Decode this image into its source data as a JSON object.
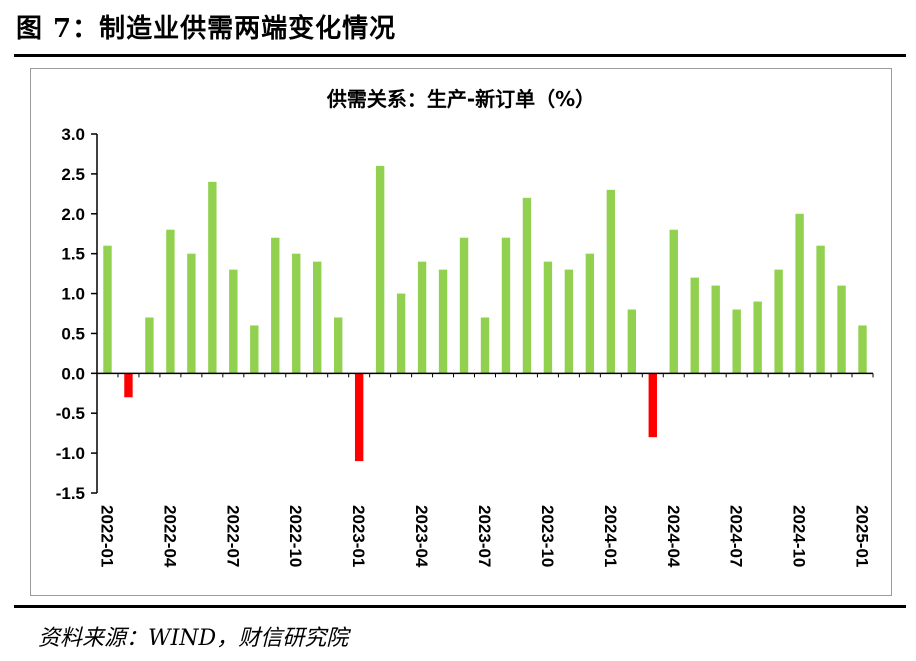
{
  "figure": {
    "title": "图 7：制造业供需两端变化情况",
    "source": "资料来源：WIND，财信研究院"
  },
  "colors": {
    "positive": "#92d050",
    "negative": "#ff0000",
    "axis": "#000000"
  },
  "chart_data": {
    "type": "bar",
    "title": "供需关系：生产-新订单（%）",
    "xlabel": "",
    "ylabel": "",
    "ylim": [
      -1.5,
      3.0
    ],
    "yticks": [
      3.0,
      2.5,
      2.0,
      1.5,
      1.0,
      0.5,
      0.0,
      -0.5,
      -1.0,
      -1.5
    ],
    "ytick_labels": [
      "3.0",
      "2.5",
      "2.0",
      "1.5",
      "1.0",
      "0.5",
      "0.0",
      "-0.5",
      "-1.0",
      "-1.5"
    ],
    "categories": [
      "2022-01",
      "2022-02",
      "2022-03",
      "2022-04",
      "2022-05",
      "2022-06",
      "2022-07",
      "2022-08",
      "2022-09",
      "2022-10",
      "2022-11",
      "2022-12",
      "2023-01",
      "2023-02",
      "2023-03",
      "2023-04",
      "2023-05",
      "2023-06",
      "2023-07",
      "2023-08",
      "2023-09",
      "2023-10",
      "2023-11",
      "2023-12",
      "2024-01",
      "2024-02",
      "2024-03",
      "2024-04",
      "2024-05",
      "2024-06",
      "2024-07",
      "2024-08",
      "2024-09",
      "2024-10",
      "2024-11",
      "2024-12",
      "2025-01"
    ],
    "xtick_labels": [
      "2022-01",
      "2022-04",
      "2022-07",
      "2022-10",
      "2023-01",
      "2023-04",
      "2023-07",
      "2023-10",
      "2024-01",
      "2024-04",
      "2024-07",
      "2024-10",
      "2025-01"
    ],
    "values": [
      1.6,
      -0.3,
      0.7,
      1.8,
      1.5,
      2.4,
      1.3,
      0.6,
      1.7,
      1.5,
      1.4,
      0.7,
      -1.1,
      2.6,
      1.0,
      1.4,
      1.3,
      1.7,
      0.7,
      1.7,
      2.2,
      1.4,
      1.3,
      1.5,
      2.3,
      0.8,
      -0.8,
      1.8,
      1.2,
      1.1,
      0.8,
      0.9,
      1.3,
      2.0,
      1.6,
      1.1,
      0.6
    ],
    "legend": "none",
    "grid": false
  }
}
